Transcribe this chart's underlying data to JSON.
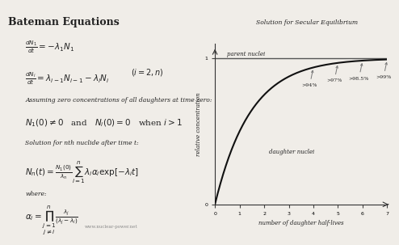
{
  "title_left": "Bateman Equations",
  "title_right": "Solution for Secular Equilibrium",
  "bg_color": "#f0ede8",
  "eq1": "\\frac{dN_1}{dt} = -\\lambda_1 N_1",
  "eq2": "\\frac{dN_i}{dt} = \\lambda_{i-1}N_{i-1} - \\lambda_i N_i \\quad (i=2,n)",
  "eq3": "N_1(0) \\neq 0 \\quad \\text{and} \\quad N_i(0) = 0 \\quad \\text{when } i > 1",
  "eq4": "N_n(t) = \\frac{N_1(0)}{\\lambda_n}\\sum_{i=1}^{n} \\lambda_i \\alpha_i \\exp[-\\lambda_i t]",
  "eq5": "\\alpha_i = \\prod_{\\substack{j=1 \\\\ j\\neq i}}^{n} \\frac{\\lambda_j}{(\\lambda_j - \\lambda_i)}",
  "assume_text": "Assuming zero concentrations of all daughters at time zero:",
  "where_text": "where:",
  "solution_text": "Solution for nth nuclide after time t:",
  "watermark": "www.nuclear-power.net",
  "graph_xlabel": "number of daughter half-lives",
  "graph_ylabel": "relative concentration",
  "parent_label": "parent nuclei",
  "daughter_label": "daughter nuclei",
  "annotations": [
    {
      "x": 4.0,
      "label": ">94%"
    },
    {
      "x": 5.0,
      "label": ">97%"
    },
    {
      "x": 6.0,
      "label": ">98.5%"
    },
    {
      "x": 7.0,
      "label": ">99%"
    }
  ],
  "xlim": [
    0,
    7
  ],
  "ylim": [
    0,
    1.1
  ],
  "line_color": "#111111",
  "parent_line_color": "#555555",
  "arrow_color": "#777777",
  "text_color": "#222222"
}
